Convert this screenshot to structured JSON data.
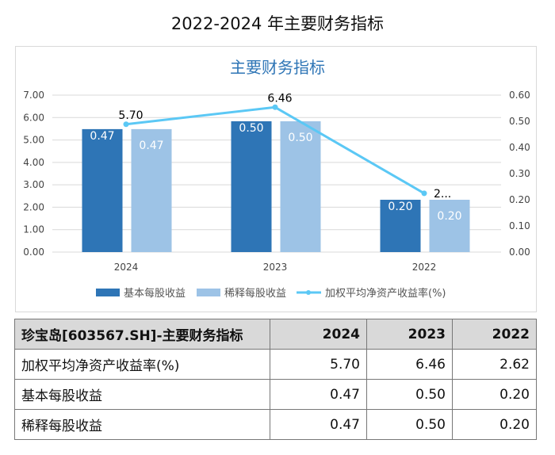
{
  "page_title": "2022-2024 年主要财务指标",
  "chart_data": {
    "type": "bar+line",
    "title": "主要财务指标",
    "categories": [
      "2024",
      "2023",
      "2022"
    ],
    "left_axis": {
      "ticks": [
        "0.00",
        "1.00",
        "2.00",
        "3.00",
        "4.00",
        "5.00",
        "6.00",
        "7.00"
      ],
      "range": [
        0,
        7
      ]
    },
    "right_axis": {
      "ticks": [
        "0.00",
        "0.10",
        "0.20",
        "0.30",
        "0.40",
        "0.50",
        "0.60"
      ],
      "range": [
        0,
        0.6
      ]
    },
    "series": [
      {
        "name": "基本每股收益",
        "type": "bar",
        "axis": "right",
        "color": "#2e75b6",
        "values": [
          0.47,
          0.5,
          0.2
        ],
        "labels": [
          "0.47",
          "0.50",
          "0.20"
        ]
      },
      {
        "name": "稀释每股收益",
        "type": "bar",
        "axis": "right",
        "color": "#9dc3e6",
        "values": [
          0.47,
          0.5,
          0.2
        ],
        "labels": [
          "0.47",
          "0.50",
          "0.20"
        ]
      },
      {
        "name": "加权平均净资产收益率(%)",
        "type": "line",
        "axis": "left",
        "color": "#5bc8f5",
        "values": [
          5.7,
          6.46,
          2.62
        ],
        "labels": [
          "5.70",
          "6.46",
          "2..."
        ]
      }
    ],
    "grid": true,
    "legend": "bottom",
    "title_color": "#2e75b6"
  },
  "table": {
    "header": [
      "珍宝岛[603567.SH]-主要财务指标",
      "2024",
      "2023",
      "2022"
    ],
    "rows": [
      [
        "加权平均净资产收益率(%)",
        "5.70",
        "6.46",
        "2.62"
      ],
      [
        "基本每股收益",
        "0.47",
        "0.50",
        "0.20"
      ],
      [
        "稀释每股收益",
        "0.47",
        "0.50",
        "0.20"
      ]
    ]
  }
}
